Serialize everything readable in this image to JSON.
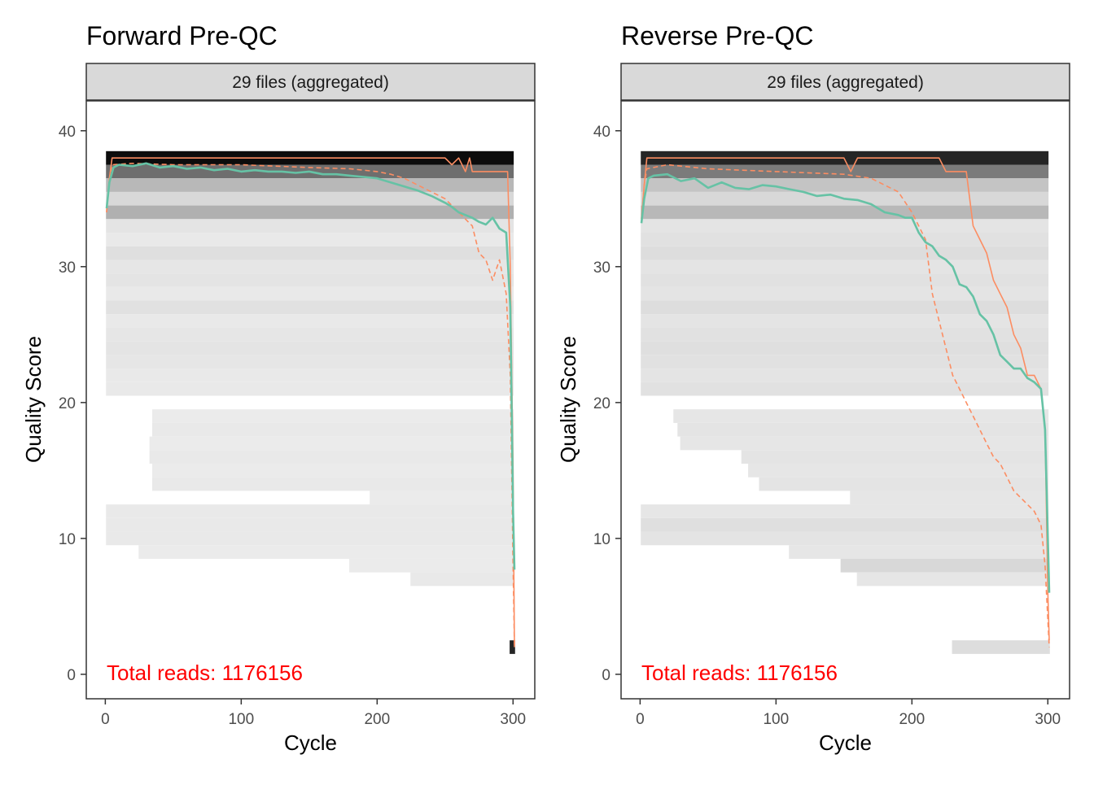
{
  "chart_data": [
    {
      "type": "line",
      "title": "Forward Pre-QC",
      "facet_label": "29 files (aggregated)",
      "xlabel": "Cycle",
      "ylabel": "Quality Score",
      "xlim": [
        -14,
        316
      ],
      "ylim": [
        -1.8,
        42.2
      ],
      "x_ticks": [
        0,
        100,
        200,
        300
      ],
      "y_ticks": [
        0,
        10,
        20,
        30,
        40
      ],
      "grid": false,
      "annotation": "Total reads: 1176156",
      "heatmap": {
        "description_scale": "grey",
        "cycle_range": [
          1,
          301
        ],
        "bands": [
          {
            "q": 38,
            "x0": 1,
            "x1": 300,
            "shade": 0.95
          },
          {
            "q": 37,
            "x0": 1,
            "x1": 300,
            "shade": 0.55
          },
          {
            "q": 36,
            "x0": 1,
            "x1": 300,
            "shade": 0.25
          },
          {
            "q": 35,
            "x0": 1,
            "x1": 300,
            "shade": 0.12
          },
          {
            "q": 34,
            "x0": 1,
            "x1": 300,
            "shade": 0.28
          },
          {
            "q": 33,
            "x0": 1,
            "x1": 300,
            "shade": 0.07
          },
          {
            "q": 32,
            "x0": 1,
            "x1": 300,
            "shade": 0.05
          },
          {
            "q": 31,
            "x0": 1,
            "x1": 300,
            "shade": 0.09
          },
          {
            "q": 30,
            "x0": 1,
            "x1": 300,
            "shade": 0.06
          },
          {
            "q": 29,
            "x0": 1,
            "x1": 300,
            "shade": 0.07
          },
          {
            "q": 28,
            "x0": 1,
            "x1": 300,
            "shade": 0.05
          },
          {
            "q": 27,
            "x0": 1,
            "x1": 300,
            "shade": 0.08
          },
          {
            "q": 26,
            "x0": 1,
            "x1": 300,
            "shade": 0.05
          },
          {
            "q": 25,
            "x0": 1,
            "x1": 300,
            "shade": 0.06
          },
          {
            "q": 24,
            "x0": 1,
            "x1": 300,
            "shade": 0.07
          },
          {
            "q": 23,
            "x0": 1,
            "x1": 300,
            "shade": 0.06
          },
          {
            "q": 22,
            "x0": 1,
            "x1": 300,
            "shade": 0.05
          },
          {
            "q": 21,
            "x0": 1,
            "x1": 300,
            "shade": 0.05
          },
          {
            "q": 19,
            "x0": 35,
            "x1": 300,
            "shade": 0.04
          },
          {
            "q": 18,
            "x0": 35,
            "x1": 300,
            "shade": 0.05
          },
          {
            "q": 17,
            "x0": 33,
            "x1": 300,
            "shade": 0.04
          },
          {
            "q": 16,
            "x0": 33,
            "x1": 300,
            "shade": 0.05
          },
          {
            "q": 15,
            "x0": 35,
            "x1": 300,
            "shade": 0.04
          },
          {
            "q": 14,
            "x0": 35,
            "x1": 300,
            "shade": 0.05
          },
          {
            "q": 13,
            "x0": 195,
            "x1": 300,
            "shade": 0.04
          },
          {
            "q": 12,
            "x0": 1,
            "x1": 300,
            "shade": 0.05
          },
          {
            "q": 11,
            "x0": 1,
            "x1": 300,
            "shade": 0.05
          },
          {
            "q": 10,
            "x0": 1,
            "x1": 300,
            "shade": 0.05
          },
          {
            "q": 9,
            "x0": 25,
            "x1": 300,
            "shade": 0.04
          },
          {
            "q": 8,
            "x0": 180,
            "x1": 300,
            "shade": 0.04
          },
          {
            "q": 7,
            "x0": 225,
            "x1": 300,
            "shade": 0.05
          },
          {
            "q": 2,
            "x0": 298,
            "x1": 301,
            "shade": 0.85
          }
        ]
      },
      "series": [
        {
          "name": "",
          "color": "#66c2a5",
          "style": "solid",
          "x": [
            1,
            3,
            6,
            10,
            20,
            30,
            40,
            50,
            60,
            70,
            80,
            90,
            100,
            110,
            120,
            130,
            140,
            150,
            160,
            170,
            180,
            190,
            200,
            210,
            220,
            230,
            240,
            250,
            255,
            260,
            265,
            270,
            275,
            280,
            285,
            290,
            295,
            298,
            300,
            301
          ],
          "y": [
            34.3,
            36.2,
            37.3,
            37.5,
            37.4,
            37.6,
            37.3,
            37.4,
            37.2,
            37.3,
            37.1,
            37.2,
            37.0,
            37.1,
            37.0,
            37.0,
            36.9,
            37.0,
            36.8,
            36.8,
            36.7,
            36.6,
            36.5,
            36.2,
            35.9,
            35.6,
            35.2,
            34.7,
            34.4,
            34.0,
            33.8,
            33.6,
            33.3,
            33.1,
            33.6,
            32.8,
            32.5,
            27.0,
            12.0,
            7.7
          ]
        },
        {
          "name": "",
          "color": "#fc8d62",
          "style": "solid",
          "x": [
            1,
            3,
            5,
            50,
            100,
            150,
            200,
            250,
            255,
            260,
            265,
            268,
            270,
            290,
            296,
            298,
            300,
            301
          ],
          "y": [
            34.0,
            36.5,
            38.0,
            38.0,
            38.0,
            38.0,
            38.0,
            38.0,
            37.5,
            38.0,
            37.0,
            38.0,
            37.0,
            37.0,
            37.0,
            30.0,
            15.0,
            2.0
          ]
        },
        {
          "name": "",
          "color": "#fc8d62",
          "style": "dashed",
          "x": [
            1,
            3,
            5,
            20,
            50,
            100,
            150,
            180,
            200,
            210,
            220,
            230,
            240,
            250,
            255,
            260,
            265,
            270,
            275,
            280,
            285,
            290,
            295,
            298,
            300,
            301
          ],
          "y": [
            34.0,
            36.5,
            37.5,
            37.6,
            37.5,
            37.5,
            37.3,
            37.2,
            37.0,
            36.8,
            36.5,
            36.0,
            35.5,
            35.0,
            34.5,
            34.0,
            33.5,
            33.0,
            31.0,
            30.5,
            29.0,
            30.5,
            28.0,
            22.0,
            8.0,
            2.0
          ]
        }
      ]
    },
    {
      "type": "line",
      "title": "Reverse Pre-QC",
      "facet_label": "29 files (aggregated)",
      "xlabel": "Cycle",
      "ylabel": "Quality Score",
      "xlim": [
        -14,
        316
      ],
      "ylim": [
        -1.8,
        42.2
      ],
      "x_ticks": [
        0,
        100,
        200,
        300
      ],
      "y_ticks": [
        0,
        10,
        20,
        30,
        40
      ],
      "grid": false,
      "annotation": "Total reads: 1176156",
      "heatmap": {
        "description_scale": "grey",
        "cycle_range": [
          1,
          301
        ],
        "bands": [
          {
            "q": 38,
            "x0": 1,
            "x1": 300,
            "shade": 0.85
          },
          {
            "q": 37,
            "x0": 1,
            "x1": 300,
            "shade": 0.5
          },
          {
            "q": 36,
            "x0": 1,
            "x1": 300,
            "shade": 0.2
          },
          {
            "q": 35,
            "x0": 1,
            "x1": 300,
            "shade": 0.12
          },
          {
            "q": 34,
            "x0": 1,
            "x1": 300,
            "shade": 0.25
          },
          {
            "q": 33,
            "x0": 1,
            "x1": 300,
            "shade": 0.07
          },
          {
            "q": 32,
            "x0": 1,
            "x1": 300,
            "shade": 0.08
          },
          {
            "q": 31,
            "x0": 1,
            "x1": 300,
            "shade": 0.1
          },
          {
            "q": 30,
            "x0": 1,
            "x1": 300,
            "shade": 0.07
          },
          {
            "q": 29,
            "x0": 1,
            "x1": 300,
            "shade": 0.08
          },
          {
            "q": 28,
            "x0": 1,
            "x1": 300,
            "shade": 0.07
          },
          {
            "q": 27,
            "x0": 1,
            "x1": 300,
            "shade": 0.1
          },
          {
            "q": 26,
            "x0": 1,
            "x1": 300,
            "shade": 0.07
          },
          {
            "q": 25,
            "x0": 1,
            "x1": 300,
            "shade": 0.08
          },
          {
            "q": 24,
            "x0": 1,
            "x1": 300,
            "shade": 0.09
          },
          {
            "q": 23,
            "x0": 1,
            "x1": 300,
            "shade": 0.08
          },
          {
            "q": 22,
            "x0": 1,
            "x1": 300,
            "shade": 0.07
          },
          {
            "q": 21,
            "x0": 1,
            "x1": 300,
            "shade": 0.08
          },
          {
            "q": 19,
            "x0": 25,
            "x1": 300,
            "shade": 0.06
          },
          {
            "q": 18,
            "x0": 28,
            "x1": 300,
            "shade": 0.07
          },
          {
            "q": 17,
            "x0": 30,
            "x1": 300,
            "shade": 0.06
          },
          {
            "q": 16,
            "x0": 75,
            "x1": 300,
            "shade": 0.07
          },
          {
            "q": 15,
            "x0": 80,
            "x1": 300,
            "shade": 0.06
          },
          {
            "q": 14,
            "x0": 88,
            "x1": 300,
            "shade": 0.07
          },
          {
            "q": 13,
            "x0": 155,
            "x1": 300,
            "shade": 0.06
          },
          {
            "q": 12,
            "x0": 1,
            "x1": 300,
            "shade": 0.06
          },
          {
            "q": 11,
            "x0": 1,
            "x1": 300,
            "shade": 0.09
          },
          {
            "q": 10,
            "x0": 1,
            "x1": 300,
            "shade": 0.07
          },
          {
            "q": 9,
            "x0": 110,
            "x1": 300,
            "shade": 0.06
          },
          {
            "q": 8,
            "x0": 148,
            "x1": 300,
            "shade": 0.12
          },
          {
            "q": 7,
            "x0": 160,
            "x1": 300,
            "shade": 0.06
          },
          {
            "q": 2,
            "x0": 230,
            "x1": 301,
            "shade": 0.1
          }
        ]
      },
      "series": [
        {
          "name": "",
          "color": "#66c2a5",
          "style": "solid",
          "x": [
            1,
            3,
            6,
            10,
            20,
            30,
            40,
            50,
            60,
            70,
            80,
            90,
            100,
            110,
            120,
            130,
            140,
            150,
            160,
            170,
            180,
            190,
            195,
            200,
            205,
            210,
            215,
            220,
            225,
            230,
            235,
            240,
            245,
            250,
            255,
            260,
            265,
            270,
            275,
            280,
            285,
            290,
            295,
            298,
            300,
            301
          ],
          "y": [
            33.2,
            35.0,
            36.5,
            36.7,
            36.8,
            36.3,
            36.5,
            35.8,
            36.2,
            35.8,
            35.7,
            36.0,
            35.9,
            35.7,
            35.5,
            35.2,
            35.3,
            35.0,
            34.9,
            34.6,
            34.0,
            33.8,
            33.6,
            33.6,
            32.5,
            31.8,
            31.5,
            30.8,
            30.5,
            30.0,
            28.7,
            28.5,
            27.8,
            26.5,
            26.0,
            25.0,
            23.5,
            23.0,
            22.5,
            22.5,
            21.8,
            21.5,
            21.0,
            18.0,
            10.0,
            6.0
          ]
        },
        {
          "name": "",
          "color": "#fc8d62",
          "style": "solid",
          "x": [
            1,
            3,
            5,
            50,
            100,
            150,
            155,
            160,
            165,
            170,
            200,
            210,
            220,
            225,
            230,
            240,
            245,
            250,
            255,
            260,
            265,
            270,
            275,
            280,
            285,
            290,
            295,
            298,
            300,
            301
          ],
          "y": [
            33.5,
            36.0,
            38.0,
            38.0,
            38.0,
            38.0,
            37.0,
            38.0,
            38.0,
            38.0,
            38.0,
            38.0,
            38.0,
            37.0,
            37.0,
            37.0,
            33.0,
            32.0,
            31.0,
            29.0,
            28.0,
            27.0,
            25.0,
            24.0,
            22.0,
            22.0,
            21.0,
            18.0,
            6.0,
            2.5
          ]
        },
        {
          "name": "",
          "color": "#fc8d62",
          "style": "dashed",
          "x": [
            1,
            3,
            5,
            20,
            50,
            100,
            150,
            170,
            190,
            200,
            210,
            215,
            220,
            225,
            230,
            235,
            240,
            245,
            250,
            255,
            260,
            265,
            270,
            275,
            280,
            285,
            290,
            295,
            298,
            300,
            301
          ],
          "y": [
            33.5,
            36.0,
            37.2,
            37.5,
            37.2,
            37.0,
            36.8,
            36.5,
            35.5,
            34.0,
            32.0,
            28.0,
            26.0,
            24.0,
            22.0,
            21.0,
            20.0,
            19.0,
            18.0,
            17.0,
            16.0,
            15.5,
            14.5,
            13.5,
            13.0,
            12.5,
            12.0,
            11.0,
            8.0,
            4.0,
            2.0
          ]
        }
      ]
    }
  ]
}
